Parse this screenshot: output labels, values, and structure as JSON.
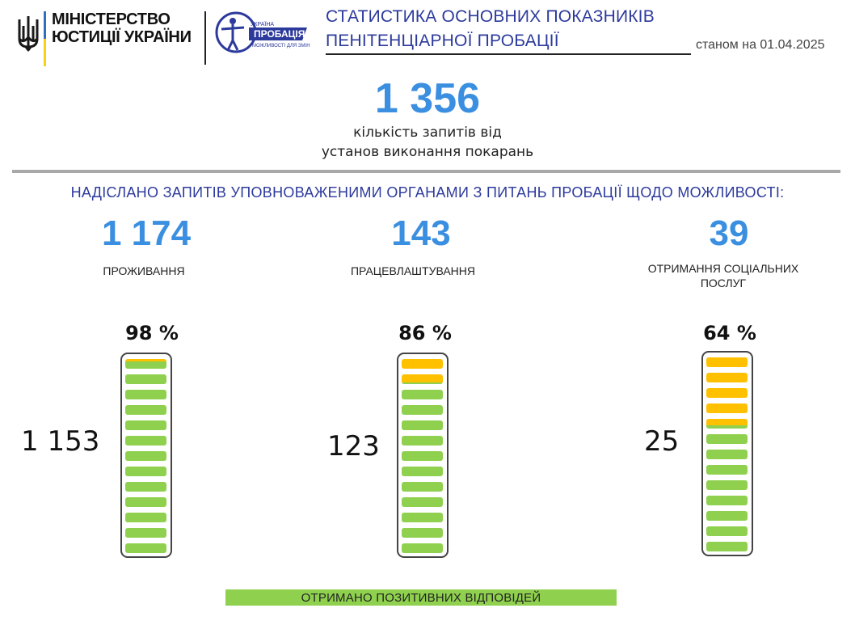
{
  "header": {
    "ministry_line1": "МІНІСТЕРСТВО",
    "ministry_line2": "ЮСТИЦІЇ УКРАЇНИ",
    "probation_logo_line1": "УКРАЇНА",
    "probation_logo_line2": "ПРОБАЦІЯ",
    "probation_logo_line3": "МОЖЛИВОСТІ ДЛЯ ЗМІН",
    "title_line1": "СТАТИСТИКА ОСНОВНИХ ПОКАЗНИКІВ",
    "title_line2": "ПЕНІТЕНЦІАРНОЇ ПРОБАЦІЇ",
    "as_of": "станом на 01.04.2025"
  },
  "hero": {
    "total": "1 356",
    "caption_line1": "кількість запитів від",
    "caption_line2": "установ виконання покарань"
  },
  "section_heading": "НАДІСЛАНО ЗАПИТІВ УПОВНОВАЖЕНИМИ ОРГАНАМИ З ПИТАНЬ ПРОБАЦІЇ  ЩОДО МОЖЛИВОСТІ:",
  "columns": [
    {
      "value": "1 174",
      "label_line1": "ПРОЖИВАННЯ",
      "label_line2": "",
      "percent_text": "98 %",
      "percent": 98,
      "positive": "1 153"
    },
    {
      "value": "143",
      "label_line1": "ПРАЦЕВЛАШТУВАННЯ",
      "label_line2": "",
      "percent_text": "86 %",
      "percent": 86,
      "positive": "123"
    },
    {
      "value": "39",
      "label_line1": "ОТРИМАННЯ  СОЦІАЛЬНИХ",
      "label_line2": "ПОСЛУГ",
      "percent_text": "64 %",
      "percent": 64,
      "positive": "25"
    }
  ],
  "legend": "ОТРИМАНО  ПОЗИТИВНИХ ВІДПОВІДЕЙ",
  "colors": {
    "accent_blue": "#3b8fe0",
    "title_navy": "#2c3a9c",
    "positive_green": "#8fd14f",
    "remaining_amber": "#ffc000"
  }
}
